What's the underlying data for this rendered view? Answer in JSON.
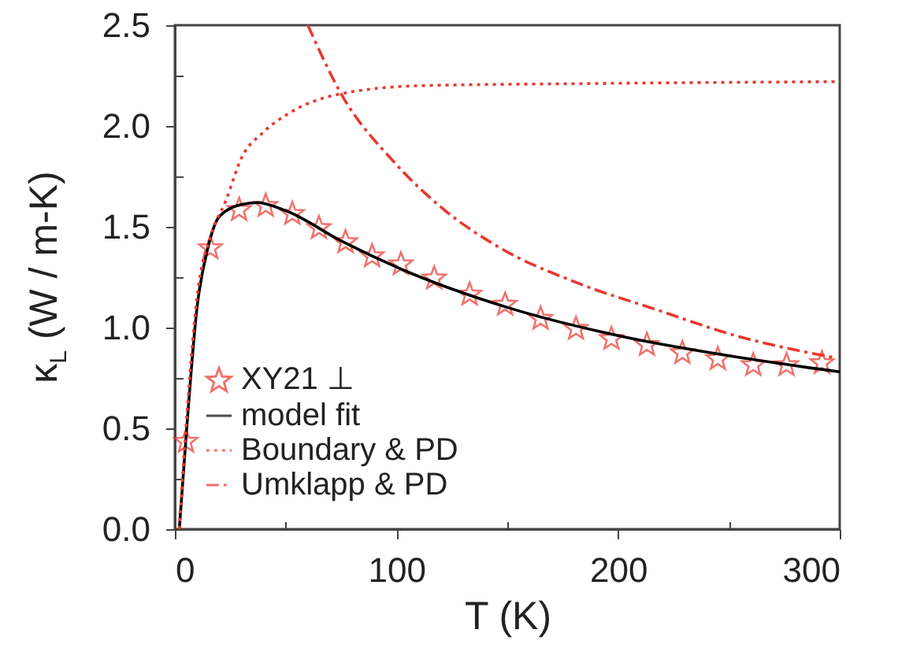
{
  "chart_data": {
    "type": "line",
    "xlabel": "T (K)",
    "ylabel": "κ$_{L}$ (W / m-K)",
    "xlim": [
      0,
      300
    ],
    "ylim": [
      0,
      2.5
    ],
    "xticks": [
      0,
      {
        "value": 50,
        "label": null
      },
      100,
      {
        "value": 150,
        "label": null
      },
      200,
      {
        "value": 250,
        "label": null
      },
      300
    ],
    "yticks": [
      {
        "value": 0,
        "label": "0.0"
      },
      {
        "value": 0.25,
        "label": null
      },
      0.5,
      {
        "value": 0.75,
        "label": null
      },
      {
        "value": 1,
        "label": "1.0"
      },
      {
        "value": 1.25,
        "label": null
      },
      1.5,
      {
        "value": 1.75,
        "label": null
      },
      {
        "value": 2,
        "label": "2.0"
      },
      {
        "value": 2.25,
        "label": null
      },
      2.5
    ],
    "legend": "bottom left",
    "grid": false,
    "series": [
      {
        "name": "XY21 ⊥",
        "type": "scatter",
        "marker": "star",
        "color": "#e8392f",
        "x": [
          5,
          16,
          29,
          41,
          53,
          65,
          77,
          89,
          102,
          117,
          133,
          149,
          165,
          181,
          197,
          213,
          229,
          245,
          261,
          276,
          292
        ],
        "values": [
          0.44,
          1.4,
          1.59,
          1.61,
          1.57,
          1.5,
          1.43,
          1.36,
          1.32,
          1.25,
          1.17,
          1.12,
          1.05,
          1.0,
          0.95,
          0.92,
          0.88,
          0.85,
          0.82,
          0.82,
          0.83
        ]
      },
      {
        "name": "model fit",
        "type": "line",
        "line_style": "solid",
        "color": "#000000",
        "x": [
          2,
          5,
          10,
          15,
          20,
          30,
          37,
          50,
          75,
          100,
          150,
          200,
          250,
          300
        ],
        "values": [
          0,
          0.45,
          1.1,
          1.4,
          1.55,
          1.61,
          1.62,
          1.58,
          1.43,
          1.3,
          1.1,
          0.96,
          0.86,
          0.78
        ]
      },
      {
        "name": "Boundary & PD",
        "type": "line",
        "line_style": "dotted",
        "color": "#e8392f",
        "x": [
          2,
          5,
          10,
          16,
          23,
          30,
          40,
          51,
          75,
          111,
          182,
          300
        ],
        "values": [
          0,
          0.5,
          1.15,
          1.45,
          1.63,
          1.84,
          1.97,
          2.06,
          2.16,
          2.2,
          2.21,
          2.22
        ]
      },
      {
        "name": "Umklapp & PD",
        "type": "line",
        "line_style": "dashdot",
        "color": "#e8392f",
        "x": [
          60,
          75,
          99,
          122,
          146,
          182,
          217,
          253,
          298
        ],
        "values": [
          2.5,
          2.16,
          1.82,
          1.58,
          1.4,
          1.22,
          1.09,
          0.96,
          0.85
        ]
      }
    ]
  }
}
